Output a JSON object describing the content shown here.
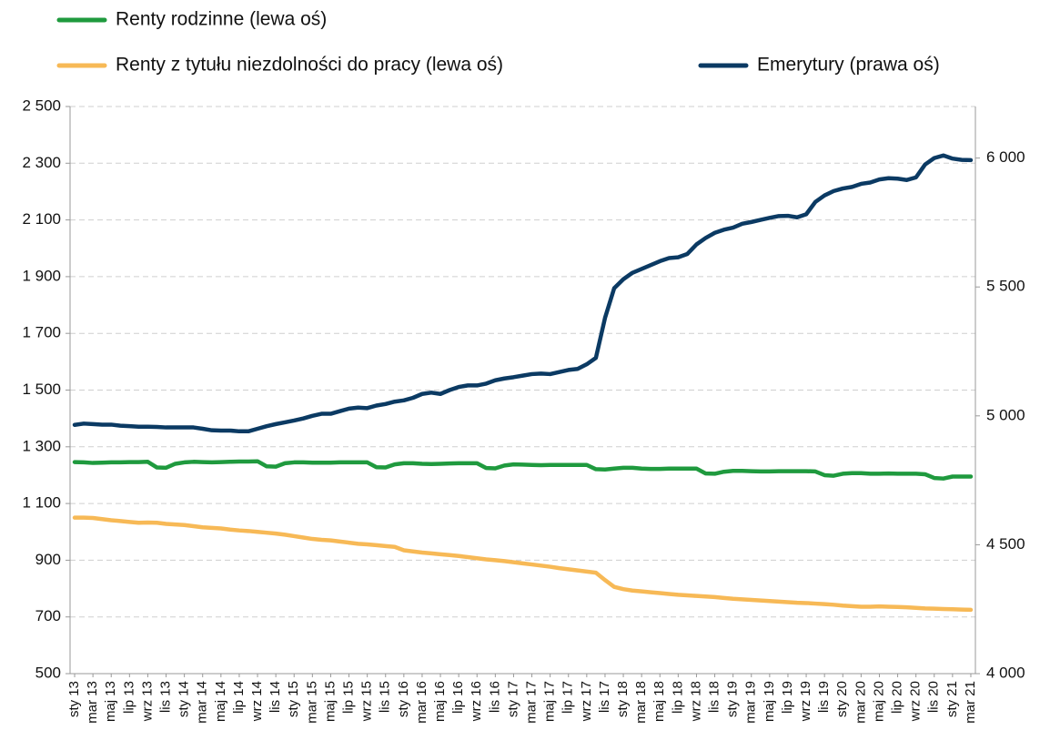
{
  "chart_data": {
    "type": "line",
    "categories": [
      "sty 13",
      null,
      "mar 13",
      null,
      "maj 13",
      null,
      "lip 13",
      null,
      "wrz 13",
      null,
      "lis 13",
      null,
      "sty 14",
      null,
      "mar 14",
      null,
      "maj 14",
      null,
      "lip 14",
      null,
      "wrz 14",
      null,
      "lis 14",
      null,
      "sty 15",
      null,
      "mar 15",
      null,
      "maj 15",
      null,
      "lip 15",
      null,
      "wrz 15",
      null,
      "lis 15",
      null,
      "sty 16",
      null,
      "mar 16",
      null,
      "maj 16",
      null,
      "lip 16",
      null,
      "wrz 16",
      null,
      "lis 16",
      null,
      "sty 17",
      null,
      "mar 17",
      null,
      "maj 17",
      null,
      "lip 17",
      null,
      "wrz 17",
      null,
      "lis 17",
      null,
      "sty 18",
      null,
      "mar 18",
      null,
      "maj 18",
      null,
      "lip 18",
      null,
      "wrz 18",
      null,
      "lis 18",
      null,
      "sty 19",
      null,
      "mar 19",
      null,
      "maj 19",
      null,
      "lip 19",
      null,
      "wrz 19",
      null,
      "lis 19",
      null,
      "sty 20",
      null,
      "mar 20",
      null,
      "maj 20",
      null,
      "lip 20",
      null,
      "wrz 20",
      null,
      "lis 20",
      null,
      "sty 21",
      null,
      "mar 21"
    ],
    "series": [
      {
        "name": "Renty rodzinne (lewa oś)",
        "color": "#1f9a3e",
        "values": [
          1246,
          1245,
          1243,
          1244,
          1245,
          1245,
          1246,
          1246,
          1247,
          1227,
          1226,
          1240,
          1245,
          1247,
          1246,
          1245,
          1246,
          1247,
          1248,
          1248,
          1249,
          1231,
          1230,
          1242,
          1245,
          1245,
          1244,
          1244,
          1244,
          1245,
          1245,
          1245,
          1245,
          1228,
          1227,
          1238,
          1242,
          1242,
          1240,
          1239,
          1240,
          1241,
          1242,
          1242,
          1242,
          1225,
          1224,
          1234,
          1238,
          1237,
          1236,
          1235,
          1236,
          1236,
          1236,
          1236,
          1236,
          1221,
          1220,
          1223,
          1226,
          1226,
          1223,
          1222,
          1222,
          1223,
          1223,
          1223,
          1223,
          1206,
          1205,
          1212,
          1215,
          1215,
          1214,
          1213,
          1213,
          1214,
          1214,
          1214,
          1214,
          1213,
          1200,
          1198,
          1205,
          1207,
          1207,
          1205,
          1205,
          1206,
          1205,
          1205,
          1205,
          1203,
          1190,
          1188,
          1195,
          1195,
          1195
        ]
      },
      {
        "name": "Renty z tytułu niezdolności do pracy (lewa oś)",
        "color": "#f7b956",
        "values": [
          1050,
          1050,
          1049,
          1045,
          1041,
          1038,
          1035,
          1032,
          1033,
          1032,
          1028,
          1026,
          1024,
          1020,
          1016,
          1014,
          1012,
          1008,
          1005,
          1003,
          1000,
          997,
          994,
          990,
          985,
          980,
          975,
          972,
          970,
          966,
          962,
          958,
          956,
          953,
          950,
          947,
          935,
          931,
          927,
          924,
          921,
          918,
          915,
          911,
          907,
          903,
          900,
          897,
          893,
          889,
          885,
          881,
          877,
          872,
          868,
          864,
          860,
          856,
          830,
          806,
          798,
          793,
          790,
          787,
          784,
          781,
          778,
          776,
          774,
          772,
          770,
          767,
          764,
          762,
          760,
          758,
          756,
          754,
          752,
          750,
          749,
          747,
          745,
          743,
          740,
          738,
          736,
          736,
          737,
          736,
          735,
          734,
          732,
          730,
          729,
          728,
          727,
          726,
          725
        ]
      },
      {
        "name": "Emerytury (prawa oś)",
        "color": "#0b3a63",
        "axis": "y2",
        "values": [
          4965,
          4970,
          4968,
          4966,
          4966,
          4962,
          4960,
          4958,
          4958,
          4957,
          4955,
          4955,
          4955,
          4955,
          4950,
          4944,
          4943,
          4943,
          4940,
          4940,
          4950,
          4960,
          4968,
          4975,
          4982,
          4990,
          5000,
          5008,
          5008,
          5018,
          5028,
          5032,
          5030,
          5040,
          5046,
          5055,
          5060,
          5070,
          5085,
          5090,
          5085,
          5100,
          5112,
          5118,
          5118,
          5125,
          5138,
          5145,
          5150,
          5156,
          5162,
          5164,
          5162,
          5170,
          5178,
          5182,
          5200,
          5225,
          5380,
          5495,
          5530,
          5555,
          5570,
          5585,
          5600,
          5612,
          5615,
          5628,
          5665,
          5690,
          5710,
          5722,
          5730,
          5745,
          5752,
          5760,
          5768,
          5775,
          5776,
          5770,
          5782,
          5830,
          5855,
          5872,
          5882,
          5888,
          5900,
          5905,
          5917,
          5922,
          5920,
          5915,
          5925,
          5975,
          6000,
          6010,
          5998,
          5993,
          5992
        ]
      }
    ],
    "ylim": [
      500,
      2500
    ],
    "yticks": [
      500,
      700,
      900,
      {
        "value": 1100,
        "label": "1 100"
      },
      {
        "value": 1300,
        "label": "1 300"
      },
      {
        "value": 1500,
        "label": "1 500"
      },
      {
        "value": 1700,
        "label": "1 700"
      },
      {
        "value": 1900,
        "label": "1 900"
      },
      {
        "value": 2100,
        "label": "2 100"
      },
      {
        "value": 2300,
        "label": "2 300"
      },
      {
        "value": 2500,
        "label": "2 500"
      }
    ],
    "y2lim": [
      4000,
      6200
    ],
    "y2ticks": [
      {
        "value": 4000,
        "label": "4 000"
      },
      {
        "value": 4500,
        "label": "4 500"
      },
      {
        "value": 5000,
        "label": "5 000"
      },
      {
        "value": 5500,
        "label": "5 500"
      },
      {
        "value": 6000,
        "label": "6 000"
      }
    ],
    "grid": true
  }
}
